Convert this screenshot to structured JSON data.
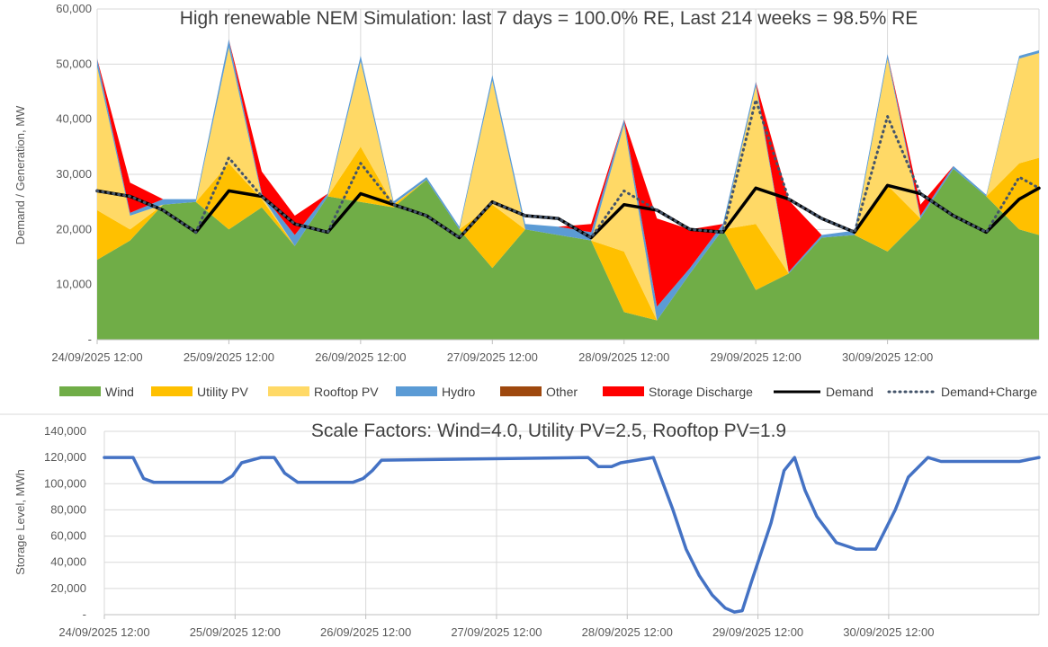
{
  "chart_data": [
    {
      "type": "area",
      "title": "High renewable NEM Simulation: last 7 days = 100.0% RE, Last 214 weeks = 98.5% RE",
      "xlabel": "",
      "ylabel": "Demand / Generation, MW",
      "ylim": [
        0,
        60000
      ],
      "yticks": [
        0,
        10000,
        20000,
        30000,
        40000,
        50000,
        60000
      ],
      "ytick_labels": [
        "-",
        "10,000",
        "20,000",
        "30,000",
        "40,000",
        "50,000",
        "60,000"
      ],
      "x_range_days": [
        0,
        7.15
      ],
      "x_tick_labels": [
        "24/09/2025 12:00",
        "25/09/2025 12:00",
        "26/09/2025 12:00",
        "27/09/2025 12:00",
        "28/09/2025 12:00",
        "29/09/2025 12:00",
        "30/09/2025 12:00"
      ],
      "x_tick_days": [
        0,
        1,
        2,
        3,
        4,
        5,
        6
      ],
      "grid": true,
      "legend_position": "bottom",
      "x": [
        0,
        0.25,
        0.5,
        0.75,
        1.0,
        1.25,
        1.5,
        1.75,
        2.0,
        2.25,
        2.5,
        2.75,
        3.0,
        3.25,
        3.5,
        3.75,
        4.0,
        4.25,
        4.5,
        4.75,
        5.0,
        5.25,
        5.5,
        5.75,
        6.0,
        6.25,
        6.5,
        6.75,
        7.0,
        7.15
      ],
      "series": [
        {
          "name": "Wind",
          "color": "#70AD47",
          "values": [
            14500,
            18000,
            24500,
            25000,
            20000,
            24000,
            17000,
            26000,
            25000,
            24000,
            29000,
            20000,
            13000,
            20000,
            19000,
            18000,
            5000,
            3500,
            12000,
            20000,
            9000,
            12000,
            18500,
            19000,
            16000,
            22000,
            31000,
            26000,
            20000,
            19000
          ]
        },
        {
          "name": "Utility PV",
          "color": "#FFC000",
          "values": [
            9000,
            2000,
            0,
            0,
            12000,
            1500,
            0,
            0,
            10000,
            500,
            0,
            0,
            11500,
            0,
            0,
            0,
            11000,
            0,
            0,
            0,
            12000,
            0,
            0,
            0,
            12000,
            0,
            0,
            0,
            12000,
            14000
          ]
        },
        {
          "name": "Rooftop PV",
          "color": "#FFD966",
          "values": [
            26000,
            2500,
            0,
            0,
            21000,
            500,
            0,
            0,
            15500,
            100,
            0,
            0,
            22500,
            0,
            0,
            0,
            23000,
            0,
            0,
            0,
            25000,
            0,
            0,
            0,
            23000,
            0,
            0,
            0,
            19000,
            19000
          ]
        },
        {
          "name": "Hydro",
          "color": "#5B9BD5",
          "values": [
            1500,
            500,
            1000,
            500,
            1500,
            500,
            2000,
            500,
            1000,
            500,
            500,
            500,
            1000,
            1000,
            1500,
            1500,
            1000,
            2500,
            1000,
            1000,
            800,
            300,
            500,
            800,
            800,
            500,
            500,
            300,
            500,
            500
          ]
        },
        {
          "name": "Other",
          "color": "#9E480E",
          "values": [
            0,
            0,
            0,
            0,
            0,
            0,
            0,
            0,
            0,
            0,
            0,
            0,
            0,
            0,
            0,
            0,
            0,
            0,
            0,
            0,
            0,
            0,
            0,
            0,
            0,
            0,
            0,
            0,
            0,
            0
          ]
        },
        {
          "name": "Storage Discharge",
          "color": "#FF0000",
          "values": [
            0,
            5500,
            0,
            0,
            0,
            4000,
            3500,
            0,
            0,
            0,
            0,
            0,
            0,
            0,
            0,
            1500,
            0,
            16000,
            7000,
            0,
            0,
            13000,
            0,
            0,
            0,
            2000,
            0,
            0,
            0,
            0
          ]
        },
        {
          "name": "Demand",
          "color": "#000000",
          "values": [
            27000,
            26000,
            23500,
            19500,
            27000,
            26000,
            21000,
            19500,
            26500,
            24500,
            22500,
            18500,
            25000,
            22500,
            22000,
            18500,
            24500,
            23500,
            20000,
            19500,
            27500,
            25500,
            22000,
            19500,
            28000,
            26500,
            22500,
            19500,
            25500,
            27500
          ]
        },
        {
          "name": "Demand+Charge",
          "color": "#44546A",
          "values": [
            27000,
            26000,
            23500,
            19500,
            33000,
            26000,
            21000,
            19500,
            32000,
            24500,
            22500,
            18500,
            25000,
            22500,
            22000,
            18500,
            27000,
            23500,
            20000,
            19500,
            43500,
            25500,
            22000,
            19500,
            40500,
            26500,
            22500,
            19500,
            29500,
            27500
          ]
        }
      ],
      "legend_entries": [
        "Wind",
        "Utility PV",
        "Rooftop PV",
        "Hydro",
        "Other",
        "Storage Discharge",
        "Demand",
        "Demand+Charge"
      ]
    },
    {
      "type": "line",
      "title": "Scale Factors: Wind=4.0, Utility PV=2.5, Rooftop PV=1.9",
      "xlabel": "",
      "ylabel": "Storage Level, MWh",
      "ylim": [
        0,
        140000
      ],
      "yticks": [
        0,
        20000,
        40000,
        60000,
        80000,
        100000,
        120000,
        140000
      ],
      "ytick_labels": [
        "-",
        "20,000",
        "40,000",
        "60,000",
        "80,000",
        "100,000",
        "120,000",
        "140,000"
      ],
      "x_range_days": [
        0,
        7.15
      ],
      "x_tick_labels": [
        "24/09/2025 12:00",
        "25/09/2025 12:00",
        "26/09/2025 12:00",
        "27/09/2025 12:00",
        "28/09/2025 12:00",
        "29/09/2025 12:00",
        "30/09/2025 12:00"
      ],
      "x_tick_days": [
        0,
        1,
        2,
        3,
        4,
        5,
        6
      ],
      "grid": true,
      "series": [
        {
          "name": "Storage Level",
          "color": "#4472C4",
          "x": [
            0,
            0.22,
            0.3,
            0.38,
            0.5,
            0.9,
            0.98,
            1.05,
            1.2,
            1.3,
            1.38,
            1.48,
            1.9,
            1.98,
            2.05,
            2.12,
            3.7,
            3.78,
            3.88,
            3.95,
            4.2,
            4.35,
            4.45,
            4.55,
            4.65,
            4.75,
            4.82,
            4.88,
            4.95,
            5.1,
            5.2,
            5.28,
            5.36,
            5.45,
            5.6,
            5.75,
            5.9,
            6.05,
            6.15,
            6.3,
            6.4,
            6.6,
            6.8,
            7.0,
            7.15
          ],
          "values": [
            120000,
            120000,
            104000,
            101000,
            101000,
            101000,
            106000,
            116000,
            120000,
            120000,
            108000,
            101000,
            101000,
            104000,
            110000,
            118000,
            120000,
            113000,
            113000,
            116000,
            120000,
            80000,
            50000,
            30000,
            15000,
            5000,
            2000,
            3000,
            25000,
            70000,
            110000,
            120000,
            95000,
            75000,
            55000,
            50000,
            50000,
            80000,
            105000,
            120000,
            117000,
            117000,
            117000,
            117000,
            120000
          ]
        }
      ]
    }
  ],
  "legend_colors": {
    "Wind": "#70AD47",
    "Utility PV": "#FFC000",
    "Rooftop PV": "#FFD966",
    "Hydro": "#5B9BD5",
    "Other": "#9E480E",
    "Storage Discharge": "#FF0000"
  }
}
